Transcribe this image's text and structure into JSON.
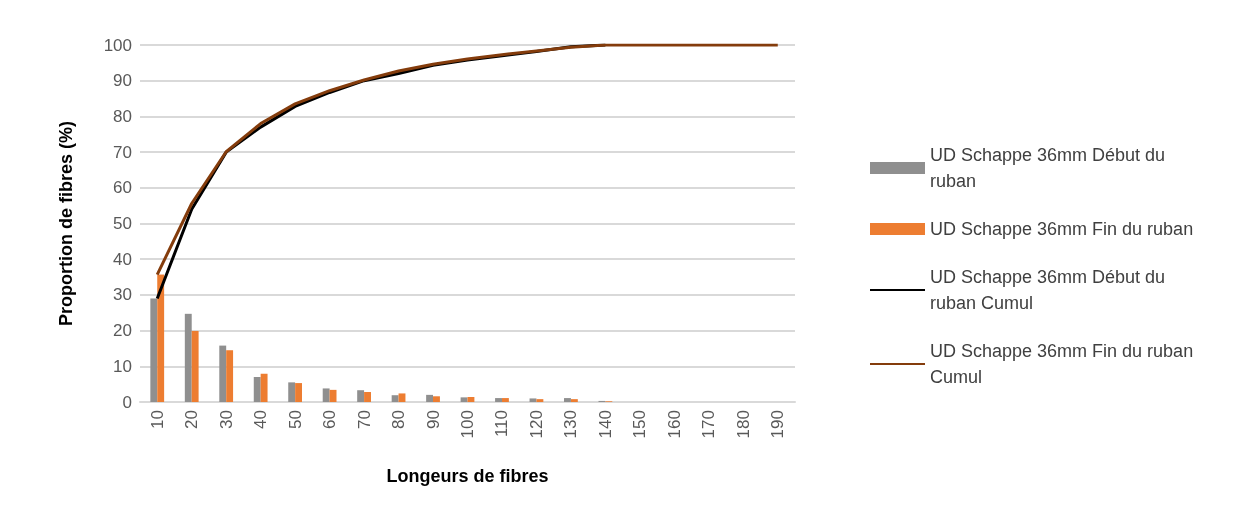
{
  "chart_data": {
    "type": "bar",
    "xlabel": "Longeurs de fibres",
    "ylabel": "Proportion de fibres (%)",
    "categories": [
      "10",
      "20",
      "30",
      "40",
      "50",
      "60",
      "70",
      "80",
      "90",
      "100",
      "110",
      "120",
      "130",
      "140",
      "150",
      "160",
      "170",
      "180",
      "190"
    ],
    "ylim": [
      0,
      100
    ],
    "yticks": [
      0,
      10,
      20,
      30,
      40,
      50,
      60,
      70,
      80,
      90,
      100
    ],
    "grid": "y",
    "legend": "right",
    "series": [
      {
        "name": "UD Schappe 36mm Début du ruban",
        "color": "#8f8f8f",
        "values": [
          29,
          24.7,
          15.8,
          7,
          5.5,
          3.8,
          3.3,
          1.9,
          2,
          1.3,
          1.1,
          1,
          1.1,
          0.3,
          0,
          0,
          0,
          0,
          0
        ]
      },
      {
        "name": "UD Schappe 36mm Fin du ruban",
        "color": "#ed7d31",
        "values": [
          35.7,
          19.9,
          14.5,
          7.9,
          5.3,
          3.4,
          2.8,
          2.4,
          1.6,
          1.4,
          1.1,
          0.8,
          0.8,
          0.2,
          0,
          0,
          0,
          0,
          0
        ]
      },
      {
        "name": "UD Schappe 36mm Début du ruban Cumul",
        "type": "line",
        "color": "#000000",
        "values": [
          29,
          54,
          70,
          77,
          82.8,
          86.7,
          90,
          92,
          94.3,
          95.8,
          97,
          98.2,
          99.5,
          100,
          null,
          null,
          null,
          null,
          null
        ]
      },
      {
        "name": "UD Schappe 36mm Fin du ruban Cumul",
        "type": "line",
        "color": "#843c0c",
        "values": [
          35.7,
          55.6,
          70.1,
          78,
          83.5,
          87.2,
          90.2,
          92.7,
          94.6,
          96.1,
          97.3,
          98.3,
          99.4,
          100,
          100,
          100,
          100,
          100,
          100
        ]
      }
    ]
  }
}
